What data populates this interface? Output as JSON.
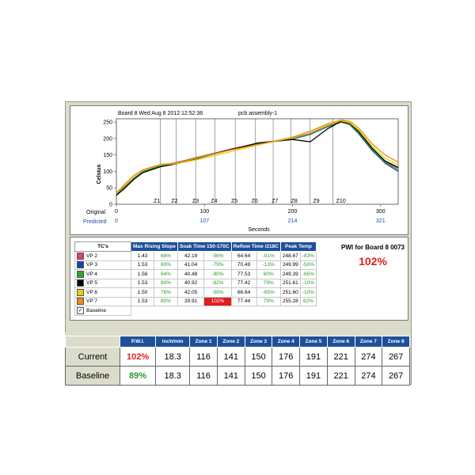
{
  "chart_data": {
    "type": "line",
    "header": {
      "board": "Board 8 Wed Aug 8 2012 12:52:36",
      "assembly": "pcb assembly-1"
    },
    "ylabel": "Celsius",
    "xlabel": "Seconds",
    "ylim": [
      0,
      260
    ],
    "xlim": [
      0,
      320
    ],
    "y_ticks": [
      0,
      50,
      100,
      150,
      200,
      250
    ],
    "x_ticks": [
      0,
      100,
      200,
      300
    ],
    "x_tick_labels": [
      "0",
      "100",
      "200",
      "300"
    ],
    "predicted_label": "Predicted",
    "original_label": "Original",
    "predicted_tick_labels": [
      "0",
      "107",
      "214",
      "321"
    ],
    "zone_boundaries": [
      50,
      68,
      90,
      112,
      135,
      158,
      178,
      198,
      220,
      246
    ],
    "zone_labels": [
      "Z1",
      "Z2",
      "Z3",
      "Z4",
      "Z5",
      "Z6",
      "Z7",
      "Z8",
      "Z9",
      "Z10"
    ],
    "zone_label_x": [
      46,
      66,
      90,
      111,
      134,
      157,
      180,
      202,
      227,
      255
    ],
    "grid": false,
    "series": [
      {
        "color": "#e8358a",
        "x": [
          0,
          10,
          20,
          30,
          50,
          70,
          100,
          130,
          160,
          200,
          220,
          240,
          255,
          265,
          275,
          290,
          305,
          320
        ],
        "y": [
          30,
          55,
          80,
          100,
          118,
          128,
          148,
          168,
          185,
          200,
          215,
          238,
          252,
          245,
          220,
          170,
          130,
          110
        ]
      },
      {
        "color": "#1e3fb0",
        "x": [
          0,
          10,
          20,
          30,
          50,
          70,
          100,
          130,
          160,
          200,
          220,
          240,
          255,
          265,
          275,
          290,
          305,
          320
        ],
        "y": [
          28,
          52,
          78,
          98,
          116,
          126,
          146,
          167,
          184,
          198,
          212,
          236,
          250,
          242,
          215,
          165,
          125,
          100
        ]
      },
      {
        "color": "#2aa82a",
        "x": [
          0,
          10,
          20,
          30,
          50,
          70,
          100,
          130,
          160,
          200,
          220,
          240,
          255,
          265,
          275,
          290,
          305,
          320
        ],
        "y": [
          29,
          53,
          79,
          99,
          117,
          127,
          147,
          166,
          183,
          199,
          213,
          237,
          251,
          243,
          218,
          168,
          128,
          105
        ]
      },
      {
        "color": "#000000",
        "x": [
          0,
          10,
          20,
          30,
          50,
          70,
          100,
          130,
          160,
          200,
          220,
          240,
          255,
          265,
          275,
          290,
          305,
          320
        ],
        "y": [
          27,
          50,
          76,
          96,
          114,
          124,
          145,
          166,
          186,
          197,
          190,
          230,
          252,
          246,
          222,
          172,
          132,
          112
        ]
      },
      {
        "color": "#e8d000",
        "x": [
          0,
          10,
          20,
          30,
          50,
          70,
          100,
          130,
          160,
          200,
          220,
          240,
          255,
          265,
          275,
          290,
          305,
          320
        ],
        "y": [
          33,
          60,
          86,
          104,
          120,
          124,
          140,
          160,
          180,
          202,
          220,
          242,
          254,
          248,
          226,
          178,
          140,
          120
        ]
      },
      {
        "color": "#f08a1a",
        "x": [
          0,
          10,
          20,
          30,
          50,
          70,
          100,
          130,
          160,
          200,
          220,
          240,
          255,
          265,
          275,
          290,
          305,
          320
        ],
        "y": [
          35,
          62,
          88,
          105,
          121,
          126,
          146,
          165,
          181,
          204,
          222,
          245,
          256,
          252,
          232,
          185,
          150,
          128
        ]
      }
    ]
  },
  "tc_table": {
    "headers": [
      "TC's",
      "Max Rising Slope",
      "Soak Time 150-170C",
      "Reflow Time /218C",
      "Peak Temp"
    ],
    "rows": [
      {
        "name": "VP 2",
        "color": "#e8358a",
        "slope": "1.43",
        "slope_pct": "68%",
        "soak": "42.19",
        "soak_pct": "-56%",
        "reflow": "64.64",
        "reflow_pct": "-91%",
        "peak": "248.67",
        "peak_pct": "-83%"
      },
      {
        "name": "VP 3",
        "color": "#1e3fb0",
        "slope": "1.53",
        "slope_pct": "80%",
        "soak": "41.04",
        "soak_pct": "-79%",
        "reflow": "70.49",
        "reflow_pct": "-13%",
        "peak": "249.99",
        "peak_pct": "-50%"
      },
      {
        "name": "VP 4",
        "color": "#2aa82a",
        "slope": "1.56",
        "slope_pct": "84%",
        "soak": "40.48",
        "soak_pct": "-90%",
        "reflow": "77.53",
        "reflow_pct": "80%",
        "peak": "249.39",
        "peak_pct": "-65%"
      },
      {
        "name": "VP 5",
        "color": "#000000",
        "slope": "1.53",
        "slope_pct": "80%",
        "soak": "40.92",
        "soak_pct": "-82%",
        "reflow": "77.42",
        "reflow_pct": "79%",
        "peak": "251.61",
        "peak_pct": "-10%"
      },
      {
        "name": "VP 6",
        "color": "#e8d000",
        "slope": "1.50",
        "slope_pct": "76%",
        "soak": "42.05",
        "soak_pct": "-59%",
        "reflow": "66.64",
        "reflow_pct": "-65%",
        "peak": "251.60",
        "peak_pct": "-10%"
      },
      {
        "name": "VP 7",
        "color": "#f08a1a",
        "slope": "1.53",
        "slope_pct": "80%",
        "soak": "39.91",
        "soak_pct": "102%",
        "reflow": "77.44",
        "reflow_pct": "79%",
        "peak": "255.28",
        "peak_pct": "82%"
      }
    ],
    "baseline_label": "Baseline"
  },
  "pwi": {
    "title": "PWI for Board 8 0073",
    "value": "102%"
  },
  "zone_table": {
    "headers": [
      "P.W.I.",
      "inch/min",
      "Zone 1",
      "Zone 2",
      "Zone 3",
      "Zone 4",
      "Zone 5",
      "Zone 6",
      "Zone 7",
      "Zone 8"
    ],
    "rows": [
      {
        "label": "Current",
        "pwi": "102%",
        "values": [
          "18.3",
          "116",
          "141",
          "150",
          "176",
          "191",
          "221",
          "274",
          "267"
        ]
      },
      {
        "label": "Baseline",
        "pwi": "89%",
        "values": [
          "18.3",
          "116",
          "141",
          "150",
          "176",
          "191",
          "221",
          "274",
          "267"
        ]
      }
    ]
  }
}
